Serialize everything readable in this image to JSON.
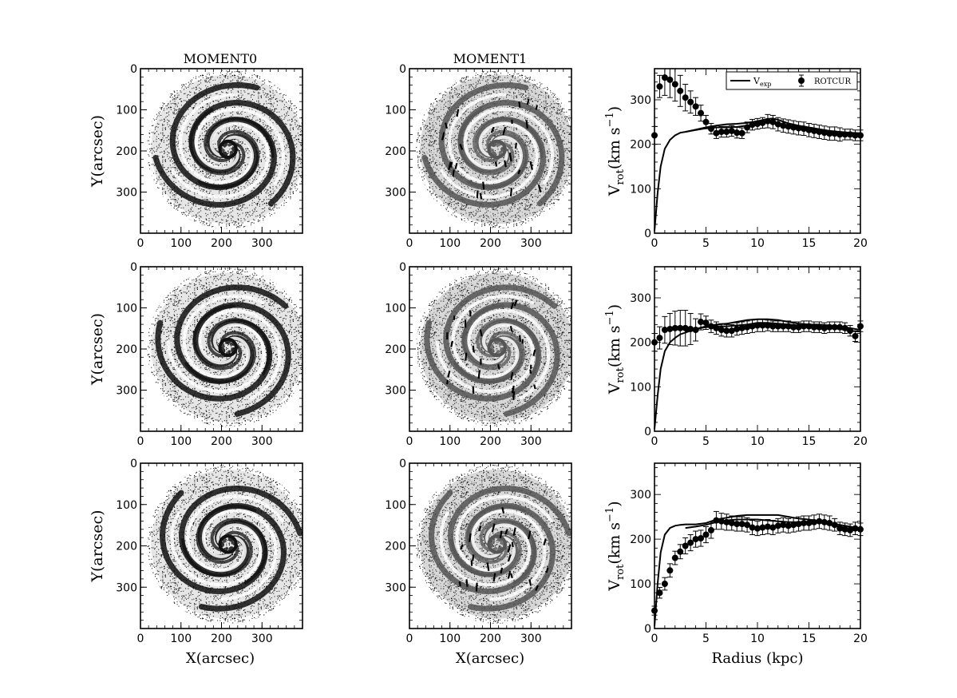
{
  "figure": {
    "column_titles": [
      "MOMENT0",
      "MOMENT1"
    ],
    "map_xlabel": "X(arcsec)",
    "map_ylabel": "Y(arcsec)",
    "map_ticks": [
      "0",
      "100",
      "200",
      "300"
    ],
    "rc_xlabel": "Radius (kpc)",
    "rc_ylabel_main": "V",
    "rc_ylabel_sub": "rot",
    "rc_ylabel_unit": "(km s",
    "rc_ylabel_exp": "−1",
    "rc_ylabel_close": ")",
    "legend": {
      "vexp_main": "V",
      "vexp_sub": "exp",
      "rotcur": "ROTCUR"
    }
  },
  "chart_data": [
    {
      "type": "image",
      "panel": "row1-moment0",
      "title": "MOMENT0",
      "xlabel": "",
      "ylabel": "Y(arcsec)",
      "xlim": [
        0,
        400
      ],
      "ylim": [
        400,
        0
      ],
      "xticks": [
        0,
        100,
        200,
        300
      ],
      "yticks": [
        0,
        100,
        200,
        300
      ]
    },
    {
      "type": "image",
      "panel": "row1-moment1",
      "title": "MOMENT1",
      "xlim": [
        0,
        400
      ],
      "ylim": [
        400,
        0
      ],
      "xticks": [
        0,
        100,
        200,
        300
      ],
      "yticks": [
        0,
        100,
        200,
        300
      ]
    },
    {
      "type": "line",
      "panel": "row1-rotation-curve",
      "xlim": [
        0,
        20
      ],
      "ylim": [
        0,
        370
      ],
      "xticks": [
        0,
        5,
        10,
        15,
        20
      ],
      "yticks": [
        0,
        100,
        200,
        300
      ],
      "legend_position": "top-right",
      "series": [
        {
          "name": "Vexp",
          "style": "line",
          "x": [
            0,
            0.3,
            0.6,
            1.0,
            1.5,
            2.0,
            2.5,
            3,
            4,
            5,
            6,
            7,
            8,
            9,
            10,
            11,
            11.5,
            12,
            13,
            14,
            15,
            16,
            17,
            18,
            19,
            20
          ],
          "y": [
            5,
            90,
            150,
            190,
            210,
            220,
            226,
            228,
            233,
            238,
            242,
            245,
            246,
            248,
            252,
            257,
            258,
            255,
            247,
            242,
            238,
            234,
            230,
            228,
            226,
            225
          ]
        },
        {
          "name": "Vexp (lower)",
          "style": "line",
          "x": [
            3,
            4,
            5,
            6,
            7,
            8,
            9,
            10,
            11,
            12,
            13,
            14,
            15,
            16,
            17,
            18,
            19,
            20
          ],
          "y": [
            228,
            232,
            236,
            238,
            238,
            239,
            242,
            248,
            250,
            247,
            240,
            236,
            232,
            228,
            225,
            223,
            222,
            221
          ]
        },
        {
          "name": "ROTCUR",
          "style": "errorbar",
          "x": [
            0,
            0.5,
            1.0,
            1.5,
            2.0,
            2.5,
            3.0,
            3.5,
            4.0,
            4.5,
            5.0,
            5.5,
            6.0,
            6.5,
            7.0,
            7.5,
            8.0,
            8.5,
            9.0,
            9.5,
            10.0,
            10.5,
            11.0,
            11.5,
            12.0,
            12.5,
            13.0,
            13.5,
            14.0,
            14.5,
            15.0,
            15.5,
            16.0,
            16.5,
            17.0,
            17.5,
            18.0,
            18.5,
            19.0,
            19.5,
            20.0
          ],
          "y": [
            220,
            330,
            350,
            345,
            335,
            320,
            305,
            295,
            285,
            270,
            250,
            235,
            225,
            228,
            228,
            230,
            226,
            225,
            238,
            244,
            246,
            248,
            252,
            250,
            245,
            242,
            240,
            238,
            236,
            235,
            232,
            230,
            228,
            226,
            224,
            224,
            222,
            222,
            222,
            220,
            220
          ],
          "err": [
            20,
            25,
            40,
            40,
            38,
            35,
            30,
            25,
            20,
            18,
            15,
            12,
            12,
            12,
            12,
            12,
            12,
            12,
            12,
            12,
            12,
            12,
            15,
            15,
            15,
            15,
            15,
            15,
            15,
            15,
            15,
            15,
            15,
            15,
            15,
            15,
            15,
            12,
            12,
            12,
            12
          ]
        }
      ]
    },
    {
      "type": "image",
      "panel": "row2-moment0",
      "ylabel": "Y(arcsec)",
      "xlim": [
        0,
        400
      ],
      "ylim": [
        400,
        0
      ]
    },
    {
      "type": "image",
      "panel": "row2-moment1",
      "xlim": [
        0,
        400
      ],
      "ylim": [
        400,
        0
      ]
    },
    {
      "type": "line",
      "panel": "row2-rotation-curve",
      "xlim": [
        0,
        20
      ],
      "ylim": [
        0,
        370
      ],
      "xticks": [
        0,
        5,
        10,
        15,
        20
      ],
      "yticks": [
        0,
        100,
        200,
        300
      ],
      "series": [
        {
          "name": "Vexp",
          "style": "line",
          "x": [
            0,
            0.3,
            0.6,
            1.0,
            1.5,
            2.0,
            2.5,
            3,
            4,
            5,
            6,
            7,
            8,
            9,
            10,
            11,
            12,
            13,
            14,
            15,
            16,
            17,
            18,
            19,
            20
          ],
          "y": [
            5,
            80,
            140,
            180,
            200,
            210,
            218,
            222,
            230,
            236,
            240,
            242,
            246,
            250,
            252,
            252,
            250,
            246,
            242,
            240,
            240,
            238,
            236,
            232,
            228
          ]
        },
        {
          "name": "Vexp (lower)",
          "style": "line",
          "x": [
            3,
            4,
            5,
            6,
            7,
            8,
            9,
            10,
            11,
            12,
            13,
            14,
            15,
            16,
            17,
            18,
            19,
            20
          ],
          "y": [
            224,
            230,
            234,
            236,
            236,
            238,
            240,
            244,
            244,
            242,
            240,
            238,
            236,
            234,
            232,
            230,
            226,
            224
          ]
        },
        {
          "name": "ROTCUR",
          "style": "errorbar",
          "x": [
            0,
            0.5,
            1.0,
            1.5,
            2.0,
            2.5,
            3.0,
            3.5,
            4.0,
            4.5,
            5.0,
            5.5,
            6.0,
            6.5,
            7.0,
            7.5,
            8.0,
            8.5,
            9.0,
            9.5,
            10.0,
            10.5,
            11.0,
            11.5,
            12.0,
            12.5,
            13.0,
            13.5,
            14.0,
            14.5,
            15.0,
            15.5,
            16.0,
            16.5,
            17.0,
            17.5,
            18.0,
            18.5,
            19.0,
            19.5,
            20.0
          ],
          "y": [
            200,
            210,
            228,
            230,
            232,
            232,
            232,
            230,
            228,
            246,
            244,
            236,
            232,
            228,
            226,
            226,
            230,
            232,
            234,
            236,
            238,
            238,
            238,
            236,
            236,
            236,
            236,
            234,
            234,
            236,
            236,
            234,
            234,
            232,
            234,
            234,
            234,
            232,
            226,
            214,
            236
          ],
          "err": [
            20,
            25,
            30,
            35,
            38,
            40,
            40,
            35,
            25,
            18,
            15,
            14,
            14,
            14,
            14,
            14,
            14,
            14,
            14,
            14,
            14,
            14,
            12,
            12,
            12,
            12,
            12,
            12,
            12,
            12,
            12,
            12,
            12,
            12,
            12,
            12,
            12,
            12,
            12,
            12,
            12
          ]
        }
      ]
    },
    {
      "type": "image",
      "panel": "row3-moment0",
      "xlabel": "X(arcsec)",
      "ylabel": "Y(arcsec)",
      "xlim": [
        0,
        400
      ],
      "ylim": [
        400,
        0
      ]
    },
    {
      "type": "image",
      "panel": "row3-moment1",
      "xlabel": "X(arcsec)",
      "xlim": [
        0,
        400
      ],
      "ylim": [
        400,
        0
      ]
    },
    {
      "type": "line",
      "panel": "row3-rotation-curve",
      "xlabel": "Radius (kpc)",
      "xlim": [
        0,
        20
      ],
      "ylim": [
        0,
        370
      ],
      "xticks": [
        0,
        5,
        10,
        15,
        20
      ],
      "yticks": [
        0,
        100,
        200,
        300
      ],
      "series": [
        {
          "name": "Vexp",
          "style": "line",
          "x": [
            0,
            0.3,
            0.6,
            1.0,
            1.5,
            2.0,
            2.5,
            3,
            4,
            5,
            6,
            7,
            8,
            9,
            10,
            11,
            12,
            13,
            14,
            15,
            16,
            17,
            18,
            19,
            20
          ],
          "y": [
            5,
            100,
            170,
            210,
            225,
            230,
            232,
            233,
            233,
            236,
            244,
            248,
            252,
            254,
            254,
            254,
            254,
            250,
            246,
            244,
            240,
            236,
            232,
            228,
            224
          ]
        },
        {
          "name": "Vexp (lower)",
          "style": "line",
          "x": [
            3,
            4,
            5,
            6,
            7,
            8,
            9,
            10,
            11,
            12,
            13,
            14,
            15,
            16,
            17,
            18,
            19,
            20
          ],
          "y": [
            225,
            228,
            232,
            238,
            242,
            244,
            244,
            244,
            242,
            240,
            238,
            238,
            238,
            238,
            232,
            228,
            224,
            222
          ]
        },
        {
          "name": "ROTCUR",
          "style": "errorbar",
          "x": [
            0,
            0.5,
            1.0,
            1.5,
            2.0,
            2.5,
            3.0,
            3.5,
            4.0,
            4.5,
            5.0,
            5.5,
            6.0,
            6.5,
            7.0,
            7.5,
            8.0,
            8.5,
            9.0,
            9.5,
            10.0,
            10.5,
            11.0,
            11.5,
            12.0,
            12.5,
            13.0,
            13.5,
            14.0,
            14.5,
            15.0,
            15.5,
            16.0,
            16.5,
            17.0,
            17.5,
            18.0,
            18.5,
            19.0,
            19.5,
            20.0
          ],
          "y": [
            40,
            80,
            100,
            130,
            158,
            172,
            185,
            192,
            200,
            202,
            210,
            220,
            242,
            240,
            238,
            236,
            234,
            234,
            232,
            226,
            224,
            226,
            228,
            226,
            230,
            232,
            230,
            232,
            234,
            236,
            236,
            238,
            240,
            238,
            236,
            232,
            224,
            222,
            220,
            224,
            222
          ],
          "err": [
            10,
            12,
            14,
            15,
            15,
            16,
            18,
            18,
            18,
            18,
            18,
            18,
            20,
            18,
            18,
            16,
            16,
            16,
            16,
            16,
            16,
            16,
            16,
            16,
            16,
            16,
            16,
            16,
            16,
            16,
            16,
            16,
            16,
            16,
            16,
            14,
            14,
            14,
            14,
            14,
            14
          ]
        }
      ]
    }
  ]
}
